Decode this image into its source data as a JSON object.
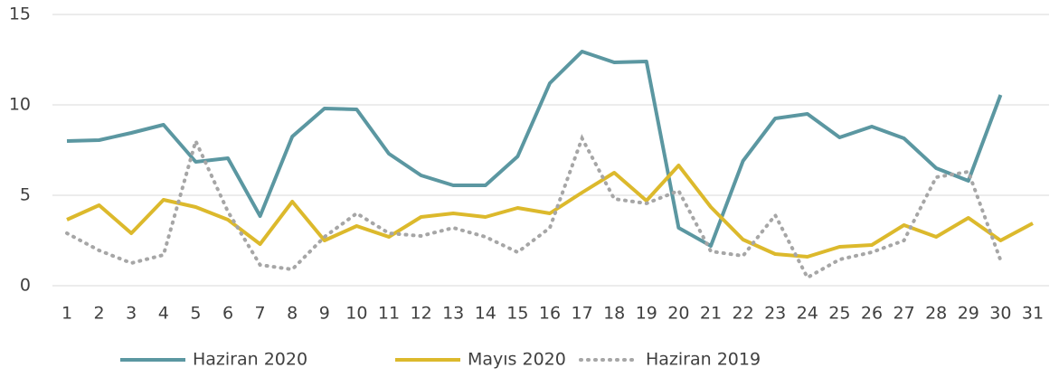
{
  "chart_data": {
    "type": "line",
    "categories": [
      "1",
      "2",
      "3",
      "4",
      "5",
      "6",
      "7",
      "8",
      "9",
      "10",
      "11",
      "12",
      "13",
      "14",
      "15",
      "16",
      "17",
      "18",
      "19",
      "20",
      "21",
      "22",
      "23",
      "24",
      "25",
      "26",
      "27",
      "28",
      "29",
      "30",
      "31"
    ],
    "series": [
      {
        "name": "Haziran 2020",
        "color": "#5b97a1",
        "style": "solid",
        "values": [
          8.0,
          8.05,
          8.45,
          8.9,
          6.85,
          7.05,
          3.85,
          8.25,
          9.8,
          9.75,
          7.3,
          6.1,
          5.55,
          5.55,
          7.15,
          11.2,
          12.95,
          12.35,
          12.4,
          3.2,
          2.2,
          6.9,
          9.25,
          9.5,
          8.2,
          8.8,
          8.15,
          6.5,
          5.8,
          10.55,
          null
        ]
      },
      {
        "name": "Mayıs 2020",
        "color": "#dcb92c",
        "style": "solid",
        "values": [
          3.65,
          4.45,
          2.9,
          4.75,
          4.35,
          3.65,
          2.3,
          4.65,
          2.5,
          3.3,
          2.7,
          3.8,
          4.0,
          3.8,
          4.3,
          4.0,
          5.15,
          6.25,
          4.7,
          6.65,
          4.35,
          2.55,
          1.75,
          1.6,
          2.15,
          2.25,
          3.35,
          2.7,
          3.75,
          2.5,
          3.45
        ]
      },
      {
        "name": "Haziran 2019",
        "color": "#a6a6a6",
        "style": "dotted",
        "values": [
          2.9,
          1.95,
          1.25,
          1.7,
          8.0,
          4.1,
          1.15,
          0.9,
          2.7,
          4.0,
          2.9,
          2.75,
          3.2,
          2.7,
          1.85,
          3.2,
          8.15,
          4.8,
          4.55,
          5.25,
          1.9,
          1.65,
          3.9,
          0.45,
          1.45,
          1.85,
          2.5,
          6.0,
          6.3,
          1.4,
          null
        ]
      }
    ],
    "ylim": [
      0,
      15
    ],
    "yticks": [
      0,
      5,
      10,
      15
    ],
    "grid": true,
    "legend": "bottom"
  }
}
